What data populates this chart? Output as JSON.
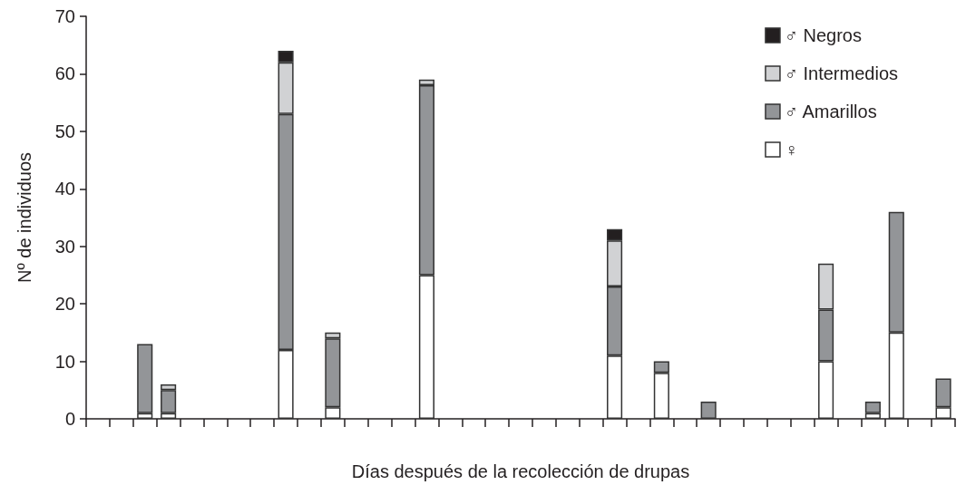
{
  "chart_data": {
    "type": "bar",
    "stacked": true,
    "xlabel": "Días después de la recolección de drupas",
    "ylabel": "Nº de individuos",
    "categories": [
      null,
      null,
      null,
      null,
      null,
      null,
      null,
      null,
      null,
      null,
      null,
      null,
      null,
      null,
      null,
      null,
      null,
      null,
      null,
      null,
      null,
      null,
      null,
      null,
      null,
      null,
      null,
      null,
      null,
      null,
      null,
      null,
      null,
      null,
      null,
      null,
      null
    ],
    "series": [
      {
        "name": "♀",
        "color": "#ffffff",
        "values": [
          null,
          null,
          1,
          1,
          null,
          null,
          null,
          null,
          12,
          null,
          2,
          null,
          null,
          null,
          25,
          null,
          null,
          null,
          null,
          null,
          null,
          null,
          11,
          null,
          8,
          null,
          null,
          null,
          null,
          null,
          null,
          10,
          null,
          1,
          15,
          null,
          2
        ]
      },
      {
        "name": "♂ Amarillos",
        "color": "#939598",
        "values": [
          null,
          null,
          12,
          4,
          null,
          null,
          null,
          null,
          41,
          null,
          12,
          null,
          null,
          null,
          33,
          null,
          null,
          null,
          null,
          null,
          null,
          null,
          12,
          null,
          2,
          null,
          3,
          null,
          null,
          null,
          null,
          9,
          null,
          2,
          21,
          null,
          5
        ]
      },
      {
        "name": "♂ Intermedios",
        "color": "#d1d2d4",
        "values": [
          null,
          null,
          null,
          1,
          null,
          null,
          null,
          null,
          9,
          null,
          1,
          null,
          null,
          null,
          1,
          null,
          null,
          null,
          null,
          null,
          null,
          null,
          8,
          null,
          null,
          null,
          null,
          null,
          null,
          null,
          null,
          8,
          null,
          null,
          null,
          null,
          null
        ]
      },
      {
        "name": "♂ Negros",
        "color": "#231f20",
        "values": [
          null,
          null,
          null,
          null,
          null,
          null,
          null,
          null,
          2,
          null,
          null,
          null,
          null,
          null,
          null,
          null,
          null,
          null,
          null,
          null,
          null,
          null,
          2,
          null,
          null,
          null,
          null,
          null,
          null,
          null,
          null,
          null,
          null,
          null,
          null,
          null,
          null
        ]
      }
    ],
    "ylim": [
      0,
      70
    ],
    "yticks": [
      0,
      10,
      20,
      30,
      40,
      50,
      60,
      70
    ],
    "grid": false,
    "legend": "top right"
  }
}
